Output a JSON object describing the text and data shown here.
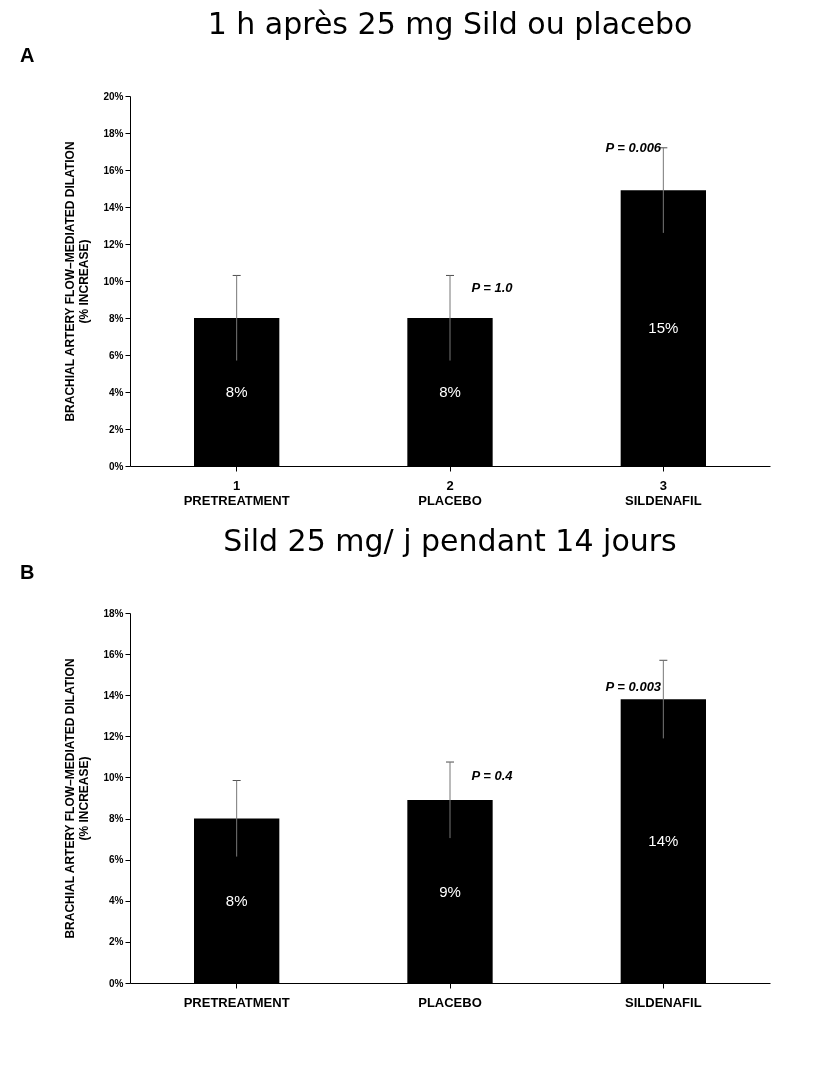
{
  "chart_data": [
    {
      "type": "bar",
      "title": "1 h après 25 mg Sild ou placebo",
      "ylabel": "BRACHIAL ARTERY FLOW–MEDIATED DILATION\n(% INCREASE)",
      "categories": [
        "1\nPRETREATMENT",
        "2\nPLACEBO",
        "3\nSILDENAFIL"
      ],
      "series": [
        {
          "color": "#000000",
          "values": [
            8,
            8,
            14.9
          ],
          "errors": [
            2.3,
            2.3,
            2.3
          ],
          "value_labels": [
            "8%",
            "8%",
            "15%"
          ]
        }
      ],
      "ylim": [
        0,
        20
      ],
      "yticks": [
        {
          "value": 0,
          "label": "0%"
        },
        {
          "value": 2,
          "label": "2%"
        },
        {
          "value": 4,
          "label": "4%"
        },
        {
          "value": 6,
          "label": "6%"
        },
        {
          "value": 8,
          "label": "8%"
        },
        {
          "value": 10,
          "label": "10%"
        },
        {
          "value": 12,
          "label": "12%"
        },
        {
          "value": 14,
          "label": "14%"
        },
        {
          "value": 16,
          "label": "16%"
        },
        {
          "value": 18,
          "label": "18%"
        },
        {
          "value": 20,
          "label": "20%"
        }
      ],
      "grid": false,
      "annotations": [
        "A",
        "P = 1.0",
        "P = 0.006"
      ]
    },
    {
      "type": "bar",
      "title": "Sild 25 mg/ j pendant 14 jours",
      "ylabel": "BRACHIAL ARTERY FLOW–MEDIATED DILATION\n(% INCREASE)",
      "categories": [
        "PRETREATMENT",
        "PLACEBO",
        "SILDENAFIL"
      ],
      "series": [
        {
          "color": "#000000",
          "values": [
            8,
            8.9,
            13.8
          ],
          "errors": [
            1.85,
            1.85,
            1.9
          ],
          "value_labels": [
            "8%",
            "9%",
            "14%"
          ]
        }
      ],
      "ylim": [
        0,
        18
      ],
      "yticks": [
        {
          "value": 0,
          "label": "0%"
        },
        {
          "value": 2,
          "label": "2%"
        },
        {
          "value": 4,
          "label": "4%"
        },
        {
          "value": 6,
          "label": "6%"
        },
        {
          "value": 8,
          "label": "8%"
        },
        {
          "value": 10,
          "label": "10%"
        },
        {
          "value": 12,
          "label": "12%"
        },
        {
          "value": 14,
          "label": "14%"
        },
        {
          "value": 16,
          "label": "16%"
        },
        {
          "value": 18,
          "label": "18%"
        }
      ],
      "grid": false,
      "annotations": [
        "B",
        "P = 0.4",
        "P = 0.003"
      ]
    }
  ]
}
